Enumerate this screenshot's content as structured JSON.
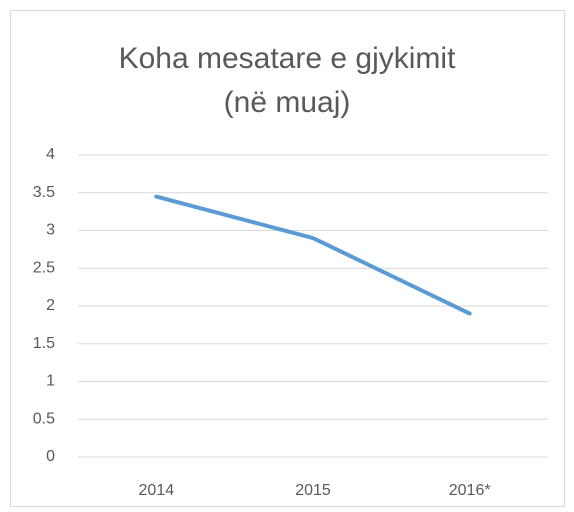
{
  "chart_data": {
    "type": "line",
    "title": [
      "Koha mesatare e gjykimit",
      "(në muaj)"
    ],
    "categories": [
      "2014",
      "2015",
      "2016*"
    ],
    "series": [
      {
        "name": "Koha mesatare e gjykimit",
        "color": "#5b9bd5",
        "values": [
          3.45,
          2.9,
          1.9
        ]
      }
    ],
    "ylim": [
      0,
      4
    ],
    "yticks": [
      0,
      0.5,
      1,
      1.5,
      2,
      2.5,
      3,
      3.5,
      4
    ],
    "grid": true,
    "legend": false
  }
}
